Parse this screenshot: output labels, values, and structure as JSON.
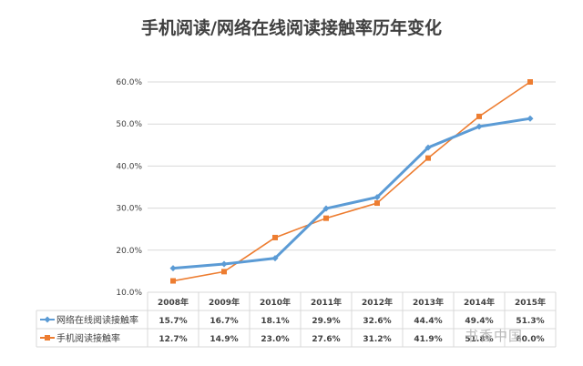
{
  "chart_data": {
    "type": "line",
    "title": "手机阅读/网络在线阅读接触率历年变化",
    "categories": [
      "2008年",
      "2009年",
      "2010年",
      "2011年",
      "2012年",
      "2013年",
      "2014年",
      "2015年"
    ],
    "y_ticks": [
      "10.0%",
      "20.0%",
      "30.0%",
      "40.0%",
      "50.0%",
      "60.0%"
    ],
    "ylim": [
      10,
      60
    ],
    "grid": true,
    "legend_placement": "data-table",
    "series": [
      {
        "name": "网络在线阅读接触率",
        "values": [
          15.7,
          16.7,
          18.1,
          29.9,
          32.6,
          44.4,
          49.4,
          51.3
        ],
        "labels": [
          "15.7%",
          "16.7%",
          "18.1%",
          "29.9%",
          "32.6%",
          "44.4%",
          "49.4%",
          "51.3%"
        ],
        "color": "#5b9bd5",
        "marker": "diamond"
      },
      {
        "name": "手机阅读接触率",
        "values": [
          12.7,
          14.9,
          23.0,
          27.6,
          31.2,
          41.9,
          51.8,
          60.0
        ],
        "labels": [
          "12.7%",
          "14.9%",
          "23.0%",
          "27.6%",
          "31.2%",
          "41.9%",
          "51.8%",
          "60.0%"
        ],
        "color": "#ed7d31",
        "marker": "square"
      }
    ]
  },
  "watermark": "书香中国"
}
